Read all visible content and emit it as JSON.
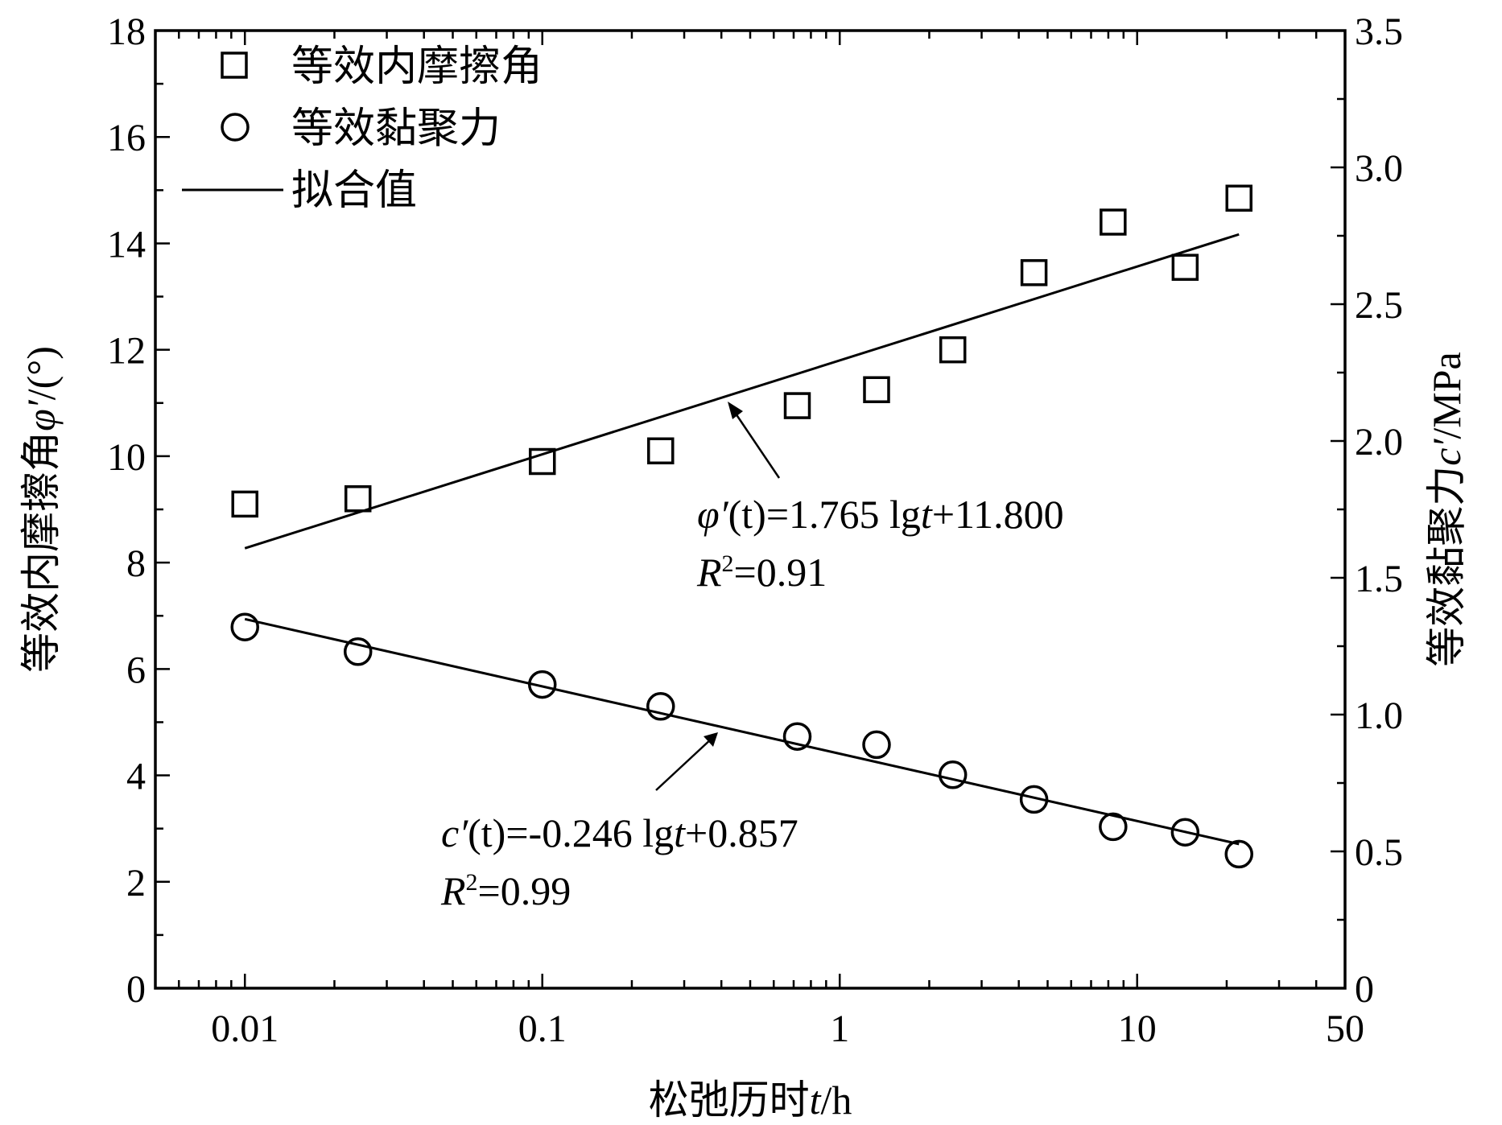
{
  "chart_data": {
    "type": "scatter",
    "x_scale": "log",
    "xlim": [
      0.005,
      50
    ],
    "ylim_left": [
      0,
      18
    ],
    "ylim_right": [
      0,
      3.5
    ],
    "x_ticks": [
      "0.01",
      "0.1",
      "1",
      "10",
      "50"
    ],
    "y_left_ticks": [
      "0",
      "2",
      "4",
      "6",
      "8",
      "10",
      "12",
      "14",
      "16",
      "18"
    ],
    "y_right_ticks": [
      "0",
      "0.5",
      "1.0",
      "1.5",
      "2.0",
      "2.5",
      "3.0",
      "3.5"
    ],
    "xlabel": {
      "main": "松弛历时",
      "var": "t",
      "unit": "/h"
    },
    "ylabel_left": {
      "main": "等效内摩擦角",
      "var": "φ′",
      "unit": "/(°)"
    },
    "ylabel_right": {
      "main": "等效黏聚力",
      "var": "c′",
      "unit": "/MPa"
    },
    "legend": {
      "position": "top-left",
      "friction_label": "等效内摩擦角",
      "cohesion_label": "等效黏聚力",
      "fit_label": "拟合值"
    },
    "series": [
      {
        "name": "等效内摩擦角",
        "axis": "left",
        "marker": "square",
        "x": [
          0.01,
          0.024,
          0.1,
          0.25,
          0.72,
          1.33,
          2.4,
          4.5,
          8.3,
          14.5,
          22
        ],
        "y": [
          9.1,
          9.2,
          9.9,
          10.1,
          10.95,
          11.25,
          12.0,
          13.45,
          14.4,
          13.55,
          14.85
        ]
      },
      {
        "name": "等效黏聚力",
        "axis": "right",
        "marker": "circle",
        "x": [
          0.01,
          0.024,
          0.1,
          0.25,
          0.72,
          1.33,
          2.4,
          4.5,
          8.3,
          14.5,
          22
        ],
        "y": [
          1.32,
          1.23,
          1.11,
          1.03,
          0.92,
          0.89,
          0.78,
          0.69,
          0.59,
          0.57,
          0.49
        ]
      }
    ],
    "fits": [
      {
        "axis": "left",
        "slope": 1.765,
        "intercept": 11.8,
        "x_range": [
          0.01,
          22
        ],
        "eq": {
          "var": "φ′",
          "arg": "(t)",
          "rhs": "=1.765 lg",
          "t": "t",
          "tail": "+11.800",
          "r_var": "R",
          "r_exp": "2",
          "r_val": "=0.91"
        }
      },
      {
        "axis": "right",
        "slope": -0.246,
        "intercept": 0.857,
        "x_range": [
          0.01,
          22
        ],
        "eq": {
          "var": "c′",
          "arg": "(t)",
          "rhs": "=-0.246 lg",
          "t": "t",
          "tail": "+0.857",
          "r_var": "R",
          "r_exp": "2",
          "r_val": "=0.99"
        }
      }
    ]
  }
}
